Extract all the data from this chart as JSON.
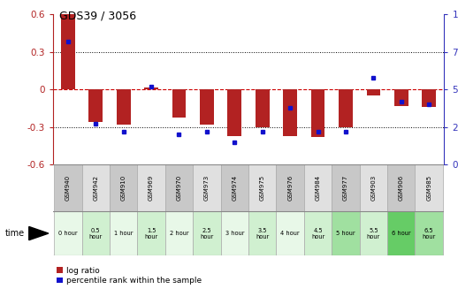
{
  "title": "GDS39 / 3056",
  "samples": [
    "GSM940",
    "GSM942",
    "GSM910",
    "GSM969",
    "GSM970",
    "GSM973",
    "GSM974",
    "GSM975",
    "GSM976",
    "GSM984",
    "GSM977",
    "GSM903",
    "GSM906",
    "GSM985"
  ],
  "time_labels": [
    "0 hour",
    "0.5\nhour",
    "1 hour",
    "1.5\nhour",
    "2 hour",
    "2.5\nhour",
    "3 hour",
    "3.5\nhour",
    "4 hour",
    "4.5\nhour",
    "5 hour",
    "5.5\nhour",
    "6 hour",
    "6.5\nhour"
  ],
  "log_ratio": [
    0.6,
    -0.26,
    -0.28,
    0.02,
    -0.22,
    -0.28,
    -0.37,
    -0.3,
    -0.37,
    -0.38,
    -0.3,
    -0.05,
    -0.13,
    -0.14
  ],
  "percentile": [
    82,
    27,
    22,
    52,
    20,
    22,
    15,
    22,
    38,
    22,
    22,
    58,
    42,
    40
  ],
  "bar_color": "#b22222",
  "dot_color": "#1111cc",
  "ymin": -0.6,
  "ymax": 0.6,
  "yticks_left": [
    -0.6,
    -0.3,
    0.0,
    0.3,
    0.6
  ],
  "yticks_right": [
    0,
    25,
    50,
    75,
    100
  ],
  "zero_line_color": "#cc0000",
  "dotted_line_color": "#000000",
  "cell_colors_even": "#c8c8c8",
  "cell_colors_odd": "#e0e0e0",
  "time_colors_even": "#b8e8b8",
  "time_colors_odd": "#d8f8d8",
  "time_colors_dark": "#66cc66",
  "bar_width": 0.5,
  "legend_log_ratio": "log ratio",
  "legend_percentile": "percentile rank within the sample"
}
